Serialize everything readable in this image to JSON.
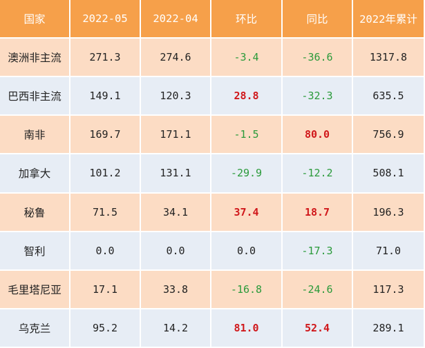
{
  "table": {
    "headers": [
      "国家",
      "2022-05",
      "2022-04",
      "环比",
      "同比",
      "2022年累计"
    ],
    "rows": [
      {
        "country": "澳洲非主流",
        "may": "271.3",
        "apr": "274.6",
        "mom": "-3.4",
        "yoy": "-36.6",
        "ytd": "1317.8"
      },
      {
        "country": "巴西非主流",
        "may": "149.1",
        "apr": "120.3",
        "mom": "28.8",
        "yoy": "-32.3",
        "ytd": "635.5"
      },
      {
        "country": "南非",
        "may": "169.7",
        "apr": "171.1",
        "mom": "-1.5",
        "yoy": "80.0",
        "ytd": "756.9"
      },
      {
        "country": "加拿大",
        "may": "101.2",
        "apr": "131.1",
        "mom": "-29.9",
        "yoy": "-12.2",
        "ytd": "508.1"
      },
      {
        "country": "秘鲁",
        "may": "71.5",
        "apr": "34.1",
        "mom": "37.4",
        "yoy": "18.7",
        "ytd": "196.3"
      },
      {
        "country": "智利",
        "may": "0.0",
        "apr": "0.0",
        "mom": "0.0",
        "yoy": "-17.3",
        "ytd": "71.0"
      },
      {
        "country": "毛里塔尼亚",
        "may": "17.1",
        "apr": "33.8",
        "mom": "-16.8",
        "yoy": "-24.6",
        "ytd": "117.3"
      },
      {
        "country": "乌克兰",
        "may": "95.2",
        "apr": "14.2",
        "mom": "81.0",
        "yoy": "52.4",
        "ytd": "289.1"
      }
    ]
  },
  "colors": {
    "header_bg": "#f6a04a",
    "row_odd_bg": "#fcdcc4",
    "row_even_bg": "#e7edf5",
    "positive": "#d0181b",
    "negative": "#2a9a3a"
  }
}
